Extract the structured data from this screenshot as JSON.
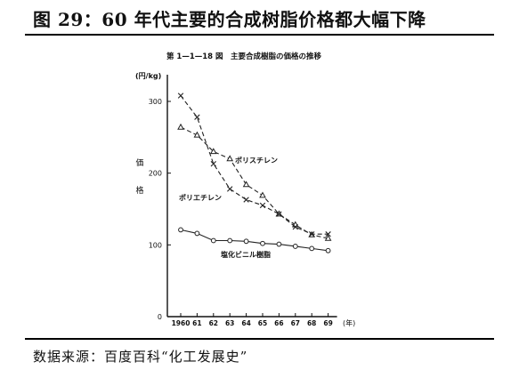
{
  "figure": {
    "title": "图 29：60 年代主要的合成树脂价格都大幅下降",
    "source": "数据来源：百度百科“化工发展史”"
  },
  "chart_data": {
    "type": "line",
    "title": "第 1—1—18 図　主要合成樹脂の価格の推移",
    "ylabel_unit": "(円/kg)",
    "ylabel": [
      "価",
      "格"
    ],
    "xlabel_unit": "(年)",
    "x": [
      "1960",
      "61",
      "62",
      "63",
      "64",
      "65",
      "66",
      "67",
      "68",
      "69"
    ],
    "y_ticks": [
      "0",
      "100",
      "200",
      "300"
    ],
    "ylim": [
      0,
      330
    ],
    "grid": false,
    "series": [
      {
        "name": "ポリスチレン",
        "marker": "triangle",
        "line": "dashed",
        "values": [
          264,
          253,
          230,
          220,
          184,
          169,
          143,
          128,
          114,
          109
        ]
      },
      {
        "name": "ポリエチレン",
        "marker": "x",
        "line": "dashed",
        "values": [
          308,
          278,
          213,
          178,
          163,
          155,
          143,
          125,
          115,
          115
        ]
      },
      {
        "name": "塩化ビニル樹脂",
        "marker": "circle",
        "line": "solid",
        "values": [
          121,
          116,
          106,
          106,
          105,
          102,
          101,
          98,
          95,
          92
        ]
      }
    ]
  }
}
